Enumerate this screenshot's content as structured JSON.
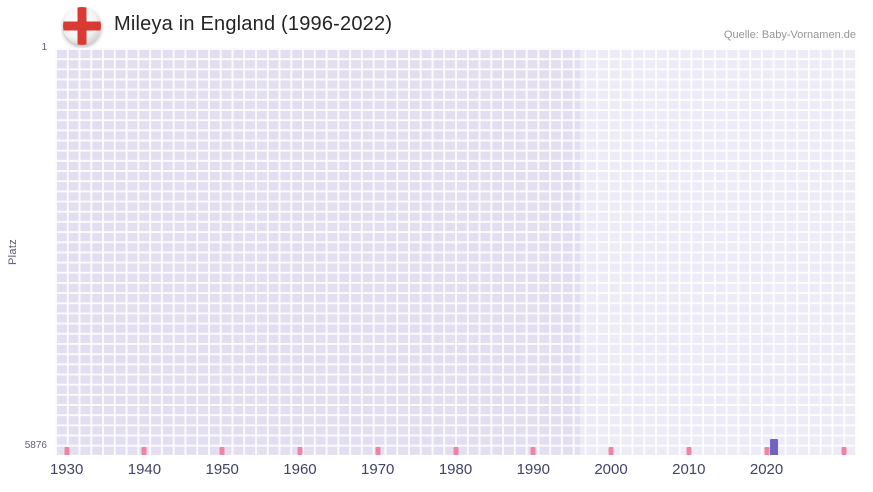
{
  "header": {
    "title": "Mileya in England (1996-2022)",
    "source": "Quelle: Baby-Vornamen.de"
  },
  "icons": {
    "flag": "england-st-george-cross-flag-icon",
    "flag_cross_color": "#d93a34"
  },
  "chart_data": {
    "type": "bar",
    "title": "Mileya in England (1996-2022)",
    "subject_name": "Mileya",
    "region_shown": "England",
    "source": "Quelle: Baby-Vornamen.de",
    "xlabel": "",
    "ylabel": "Platz",
    "y_axis": {
      "top_label": "1",
      "bottom_label": "5876",
      "best_rank": 1,
      "worst_rank": 5876,
      "inverted": true
    },
    "x_axis": {
      "min": 1928.5,
      "max": 2031.5,
      "tick_interval": 10,
      "tick_years": [
        1930,
        1940,
        1950,
        1960,
        1970,
        1980,
        1990,
        2000,
        2010,
        2020,
        2030
      ],
      "labels": [
        "1930",
        "1940",
        "1950",
        "1960",
        "1970",
        "1980",
        "1990",
        "2000",
        "2010",
        "2020"
      ],
      "tick_color": "#ee84a2"
    },
    "data_period": {
      "start": 1996,
      "end": 2022
    },
    "series": [
      {
        "name": "Mileya",
        "color": "#7163c1",
        "points": [
          {
            "year": 2021,
            "platz": 5876
          }
        ]
      }
    ],
    "background_regions": [
      {
        "name": "outside-data-period",
        "from": 1928.5,
        "to": 1996,
        "color": "#e3dff0"
      },
      {
        "name": "data-period",
        "from": 1996,
        "to": 2031.5,
        "color": "#edebf7"
      }
    ],
    "grid": true,
    "legend": false
  }
}
